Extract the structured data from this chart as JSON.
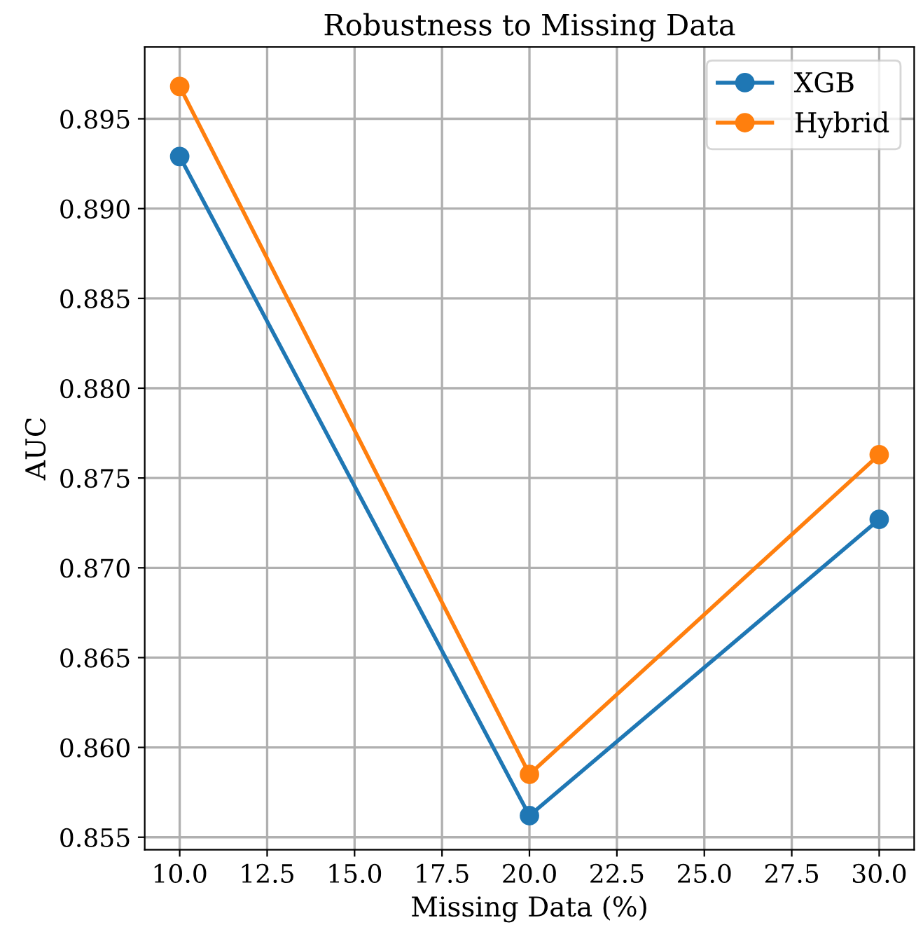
{
  "chart_data": {
    "type": "line",
    "title": "Robustness to Missing Data",
    "xlabel": "Missing Data (%)",
    "ylabel": "AUC",
    "x": [
      10,
      20,
      30
    ],
    "series": [
      {
        "name": "XGB",
        "color": "#1f77b4",
        "values": [
          0.8929,
          0.8562,
          0.8727
        ]
      },
      {
        "name": "Hybrid",
        "color": "#ff7f0e",
        "values": [
          0.8968,
          0.8585,
          0.8763
        ]
      }
    ],
    "xlim": [
      9,
      31
    ],
    "xticks": [
      {
        "value": 10,
        "label": "10.0"
      },
      {
        "value": 12.5,
        "label": "12.5"
      },
      {
        "value": 15,
        "label": "15.0"
      },
      {
        "value": 17.5,
        "label": "17.5"
      },
      {
        "value": 20,
        "label": "20.0"
      },
      {
        "value": 22.5,
        "label": "22.5"
      },
      {
        "value": 25,
        "label": "25.0"
      },
      {
        "value": 27.5,
        "label": "27.5"
      },
      {
        "value": 30,
        "label": "30.0"
      }
    ],
    "ylim": [
      0.8543,
      0.899
    ],
    "yticks": [
      {
        "value": 0.855,
        "label": "0.855"
      },
      {
        "value": 0.86,
        "label": "0.860"
      },
      {
        "value": 0.865,
        "label": "0.865"
      },
      {
        "value": 0.87,
        "label": "0.870"
      },
      {
        "value": 0.875,
        "label": "0.875"
      },
      {
        "value": 0.88,
        "label": "0.880"
      },
      {
        "value": 0.885,
        "label": "0.885"
      },
      {
        "value": 0.89,
        "label": "0.890"
      },
      {
        "value": 0.895,
        "label": "0.895"
      }
    ],
    "grid": true,
    "legend": "top right",
    "marker": "circle",
    "line_style": "solid"
  }
}
